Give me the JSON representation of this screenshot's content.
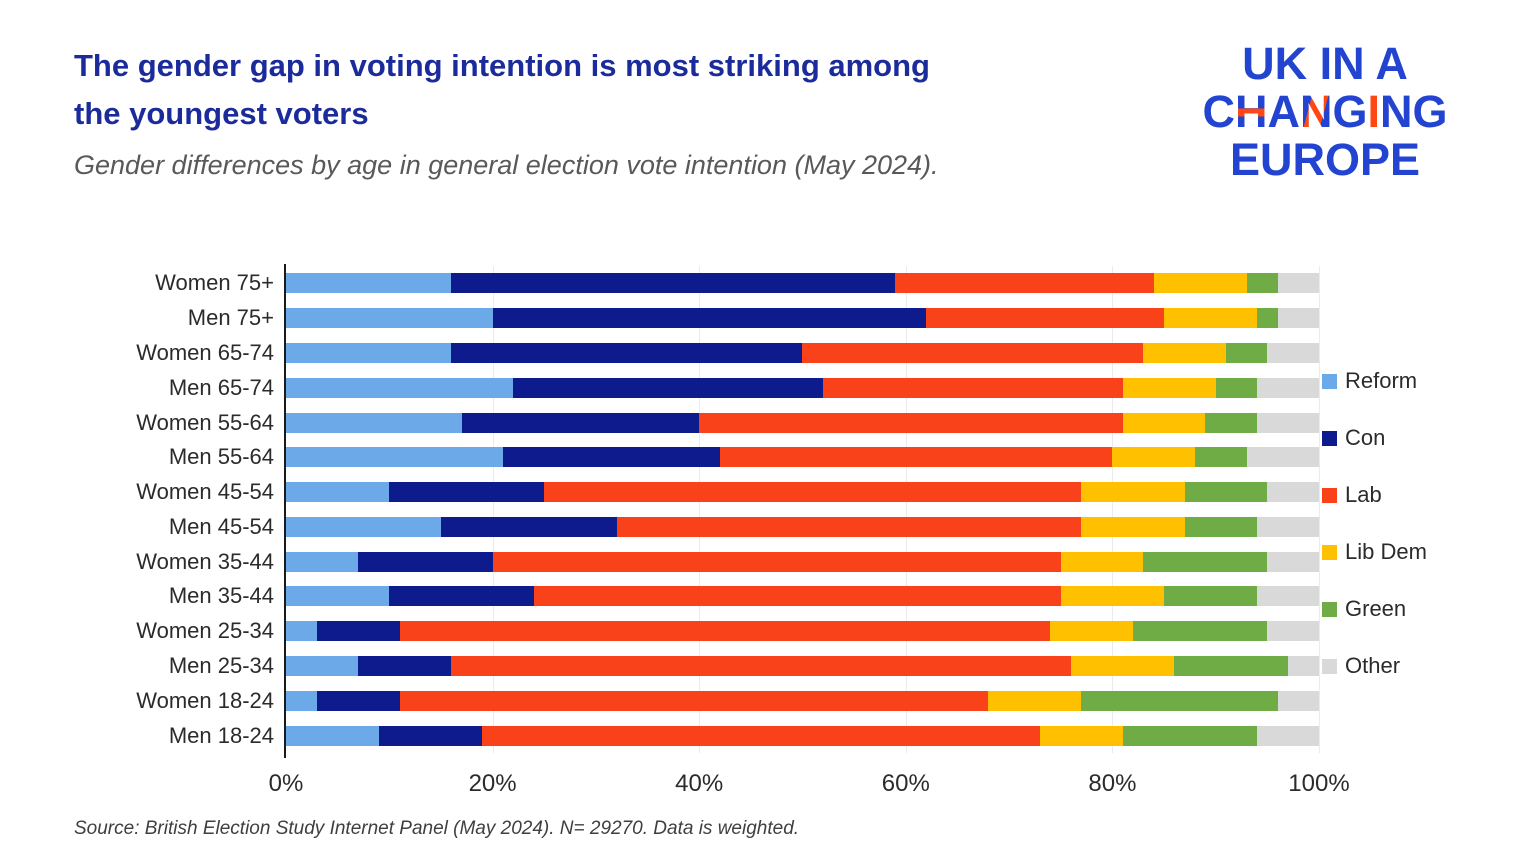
{
  "header": {
    "title_lines": [
      "The gender gap in voting intention is most striking among",
      "the youngest voters"
    ],
    "subtitle": "Gender differences by age in general election vote intention (May 2024).",
    "title_color": "#1B2B9B",
    "subtitle_color": "#595959"
  },
  "logo": {
    "line1": "UK IN A",
    "line2": "CHANGING",
    "line3": "EUROPE",
    "blue": "#2344D0",
    "orange": "#FF4713",
    "accents": {
      "1": "h-bar",
      "3": "n-diag",
      "5": "i-full"
    }
  },
  "chart_data": {
    "type": "bar",
    "orientation": "horizontal-stacked",
    "title": "Gender differences by age in general election vote intention (May 2024)",
    "xlabel": "",
    "ylabel": "",
    "xlim": [
      0,
      100
    ],
    "grid": "vertical",
    "legend_position": "right",
    "x_ticks": [
      {
        "label": "0%",
        "value": 0
      },
      {
        "label": "20%",
        "value": 20
      },
      {
        "label": "40%",
        "value": 40
      },
      {
        "label": "60%",
        "value": 60
      },
      {
        "label": "80%",
        "value": 80
      },
      {
        "label": "100%",
        "value": 100
      }
    ],
    "categories": [
      "Women 75+",
      "Men 75+",
      "Women 65-74",
      "Men 65-74",
      "Women 55-64",
      "Men 55-64",
      "Women 45-54",
      "Men 45-54",
      "Women 35-44",
      "Men 35-44",
      "Women 25-34",
      "Men 25-34",
      "Women 18-24",
      "Men 18-24"
    ],
    "series": [
      {
        "name": "Reform",
        "color": "#6CA9E8",
        "values": [
          16,
          20,
          16,
          22,
          17,
          21,
          10,
          15,
          7,
          10,
          3,
          7,
          3,
          9
        ]
      },
      {
        "name": "Con",
        "color": "#0E1B8D",
        "values": [
          43,
          42,
          34,
          30,
          23,
          21,
          15,
          17,
          13,
          14,
          8,
          9,
          8,
          10
        ]
      },
      {
        "name": "Lab",
        "color": "#F9421A",
        "values": [
          25,
          23,
          33,
          29,
          41,
          38,
          52,
          45,
          55,
          51,
          63,
          60,
          57,
          54
        ]
      },
      {
        "name": "Lib Dem",
        "color": "#FFC000",
        "values": [
          9,
          9,
          8,
          9,
          8,
          8,
          10,
          10,
          8,
          10,
          8,
          10,
          9,
          8
        ]
      },
      {
        "name": "Green",
        "color": "#6FAC46",
        "values": [
          3,
          2,
          4,
          4,
          5,
          5,
          8,
          7,
          12,
          9,
          13,
          11,
          19,
          13
        ]
      },
      {
        "name": "Other",
        "color": "#D9D9D9",
        "values": [
          4,
          4,
          5,
          6,
          6,
          7,
          5,
          6,
          5,
          6,
          5,
          3,
          4,
          6
        ]
      }
    ]
  },
  "source": "Source: British Election Study Internet Panel (May 2024). N= 29270. Data is weighted."
}
